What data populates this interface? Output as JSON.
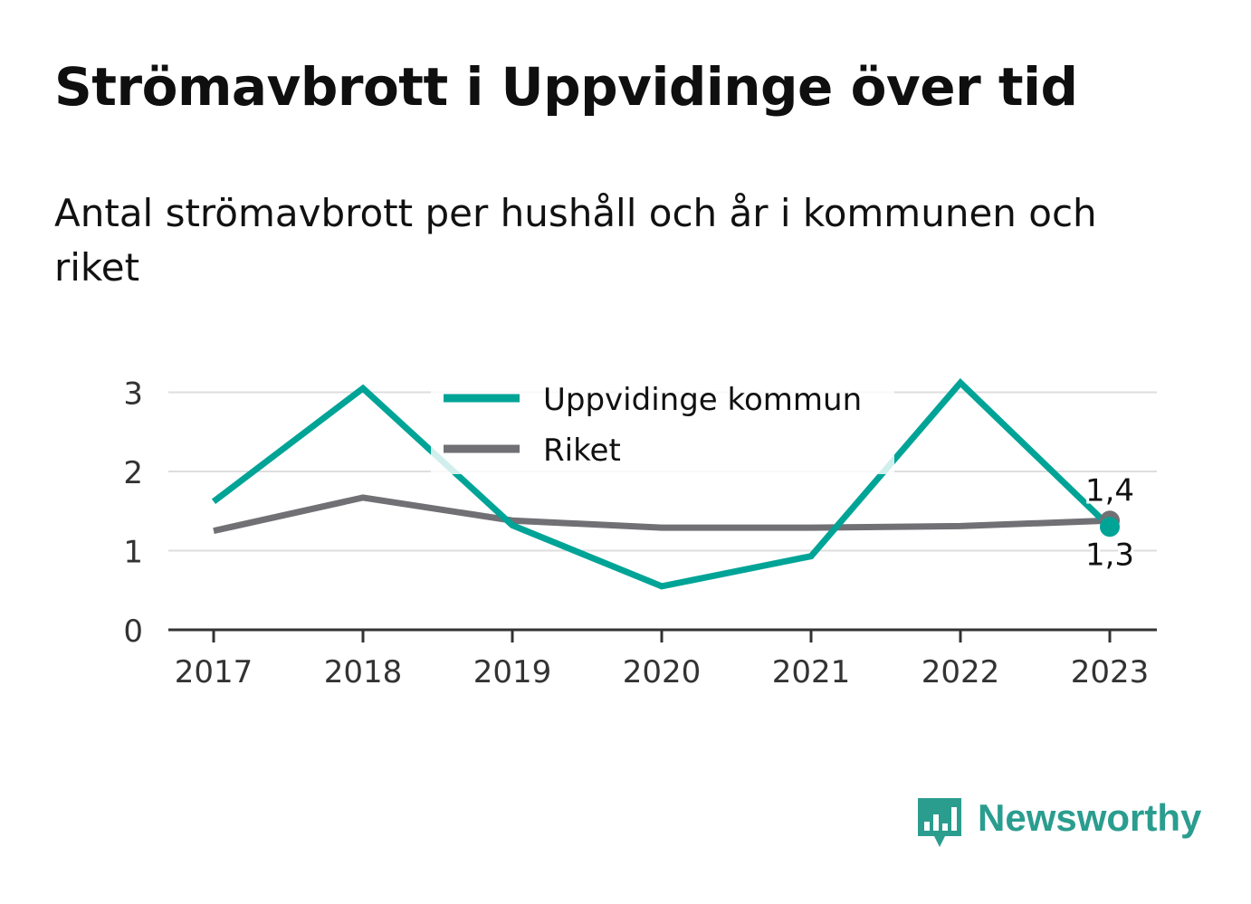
{
  "title": "Strömavbrott i Uppvidinge över tid",
  "subtitle": "Antal strömavbrott per hushåll och år i kommunen och riket",
  "brand": {
    "name": "Newsworthy",
    "color": "#2a9d8f",
    "icon": "bar-chart-speech-bubble-icon"
  },
  "chart_data": {
    "type": "line",
    "categories": [
      "2017",
      "2018",
      "2019",
      "2020",
      "2021",
      "2022",
      "2023"
    ],
    "y_ticks": [
      "0",
      "1",
      "2",
      "3"
    ],
    "ylim": [
      0,
      3.1
    ],
    "grid": true,
    "legend_position": "top-center",
    "series": [
      {
        "name": "Uppvidinge kommun",
        "color": "#00a497",
        "values": [
          1.62,
          3.05,
          1.32,
          0.55,
          0.93,
          3.12,
          1.3
        ]
      },
      {
        "name": "Riket",
        "color": "#707075",
        "values": [
          1.25,
          1.67,
          1.38,
          1.29,
          1.29,
          1.31,
          1.38
        ]
      }
    ],
    "end_labels": [
      {
        "series": "Riket",
        "text": "1,4"
      },
      {
        "series": "Uppvidinge kommun",
        "text": "1,3"
      }
    ]
  }
}
